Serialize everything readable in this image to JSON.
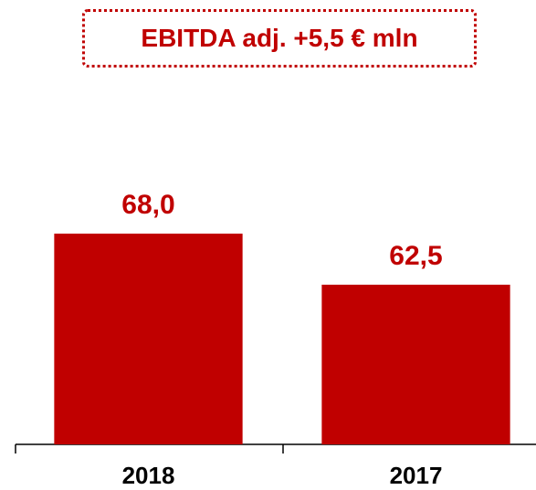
{
  "chart_data": {
    "type": "bar",
    "title": "EBITDA adj. +5,5 € mln",
    "categories": [
      "2018",
      "2017"
    ],
    "values": [
      68.0,
      62.5
    ],
    "value_labels": [
      "68,0",
      "62,5"
    ],
    "color": "#c00000",
    "ylim": [
      45.3,
      80
    ]
  }
}
